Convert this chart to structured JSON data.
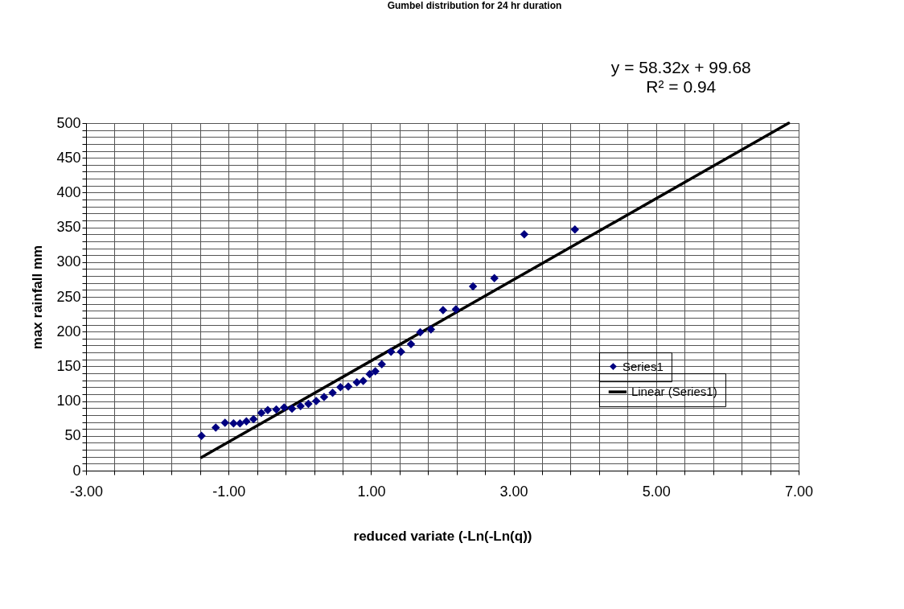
{
  "chart_data": {
    "type": "scatter",
    "title": "Gumbel distribution  for  24 hr duration",
    "xlabel": "reduced variate (-Ln(-Ln(q))",
    "ylabel": "max rainfall mm",
    "annotations": [
      "y = 58.32x + 99.68",
      "R² = 0.94"
    ],
    "series": [
      {
        "name": "Series1",
        "color": "#000080",
        "marker": "diamond",
        "x": [
          -1.38,
          -1.18,
          -1.05,
          -0.93,
          -0.84,
          -0.75,
          -0.65,
          -0.54,
          -0.45,
          -0.33,
          -0.22,
          -0.11,
          0.01,
          0.12,
          0.23,
          0.34,
          0.46,
          0.57,
          0.68,
          0.8,
          0.89,
          0.98,
          1.06,
          1.15,
          1.28,
          1.42,
          1.56,
          1.69,
          1.84,
          2.01,
          2.19,
          2.43,
          2.73,
          3.15,
          3.86
        ],
        "values": [
          50,
          62,
          69,
          68,
          68,
          71,
          74,
          83,
          87,
          88,
          91,
          89,
          93,
          96,
          100,
          106,
          112,
          120,
          121,
          127,
          129,
          139,
          143,
          153,
          171,
          171,
          182,
          199,
          203,
          231,
          232,
          265,
          277,
          340,
          347
        ]
      },
      {
        "name": "Linear (Series1)",
        "type": "line",
        "color": "#000000",
        "x": [
          -1.38,
          6.86
        ],
        "values": [
          19,
          500
        ]
      }
    ],
    "xlim": [
      -3,
      7
    ],
    "ylim": [
      0,
      500
    ],
    "xticks": [
      {
        "value": -3,
        "label": "-3.00"
      },
      {
        "value": -2.6,
        "label": null
      },
      {
        "value": -2.2,
        "label": null
      },
      {
        "value": -1.8,
        "label": null
      },
      {
        "value": -1.4,
        "label": null
      },
      {
        "value": -1,
        "label": "-1.00"
      },
      {
        "value": -0.6,
        "label": null
      },
      {
        "value": -0.2,
        "label": null
      },
      {
        "value": 0.2,
        "label": null
      },
      {
        "value": 0.6,
        "label": null
      },
      {
        "value": 1,
        "label": "1.00"
      },
      {
        "value": 1.4,
        "label": null
      },
      {
        "value": 1.8,
        "label": null
      },
      {
        "value": 2.2,
        "label": null
      },
      {
        "value": 2.6,
        "label": null
      },
      {
        "value": 3,
        "label": "3.00"
      },
      {
        "value": 3.4,
        "label": null
      },
      {
        "value": 3.8,
        "label": null
      },
      {
        "value": 4.2,
        "label": null
      },
      {
        "value": 4.6,
        "label": null
      },
      {
        "value": 5,
        "label": "5.00"
      },
      {
        "value": 5.4,
        "label": null
      },
      {
        "value": 5.8,
        "label": null
      },
      {
        "value": 6.2,
        "label": null
      },
      {
        "value": 6.6,
        "label": null
      },
      {
        "value": 7,
        "label": "7.00"
      }
    ],
    "yticks": [
      0,
      {
        "value": 10,
        "label": null
      },
      {
        "value": 20,
        "label": null
      },
      {
        "value": 30,
        "label": null
      },
      {
        "value": 40,
        "label": null
      },
      50,
      {
        "value": 60,
        "label": null
      },
      {
        "value": 70,
        "label": null
      },
      {
        "value": 80,
        "label": null
      },
      {
        "value": 90,
        "label": null
      },
      100,
      {
        "value": 110,
        "label": null
      },
      {
        "value": 120,
        "label": null
      },
      {
        "value": 130,
        "label": null
      },
      {
        "value": 140,
        "label": null
      },
      150,
      {
        "value": 160,
        "label": null
      },
      {
        "value": 170,
        "label": null
      },
      {
        "value": 180,
        "label": null
      },
      {
        "value": 190,
        "label": null
      },
      200,
      {
        "value": 210,
        "label": null
      },
      {
        "value": 220,
        "label": null
      },
      {
        "value": 230,
        "label": null
      },
      {
        "value": 240,
        "label": null
      },
      250,
      {
        "value": 260,
        "label": null
      },
      {
        "value": 270,
        "label": null
      },
      {
        "value": 280,
        "label": null
      },
      {
        "value": 290,
        "label": null
      },
      300,
      {
        "value": 310,
        "label": null
      },
      {
        "value": 320,
        "label": null
      },
      {
        "value": 330,
        "label": null
      },
      {
        "value": 340,
        "label": null
      },
      350,
      {
        "value": 360,
        "label": null
      },
      {
        "value": 370,
        "label": null
      },
      {
        "value": 380,
        "label": null
      },
      {
        "value": 390,
        "label": null
      },
      400,
      {
        "value": 410,
        "label": null
      },
      {
        "value": 420,
        "label": null
      },
      {
        "value": 430,
        "label": null
      },
      {
        "value": 440,
        "label": null
      },
      450,
      {
        "value": 460,
        "label": null
      },
      {
        "value": 470,
        "label": null
      },
      {
        "value": 480,
        "label": null
      },
      {
        "value": 490,
        "label": null
      },
      500
    ],
    "grid": true,
    "legend": "right"
  }
}
